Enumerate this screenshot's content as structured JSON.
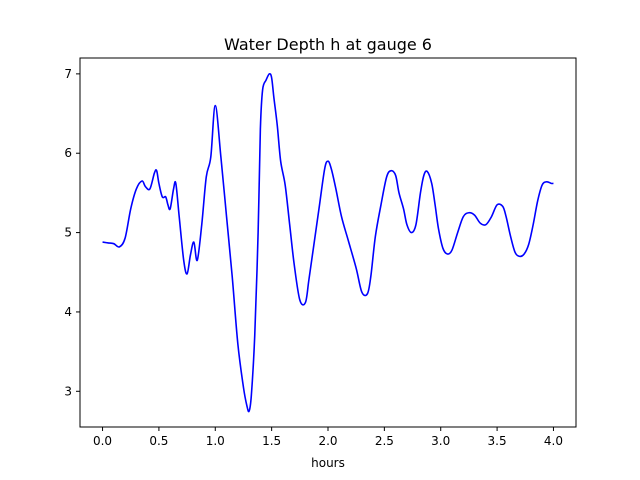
{
  "chart_data": {
    "type": "line",
    "title": "Water Depth h at gauge 6",
    "xlabel": "hours",
    "ylabel": "",
    "xlim": [
      -0.2,
      4.2
    ],
    "ylim": [
      2.55,
      7.2
    ],
    "xticks": [
      0.0,
      0.5,
      1.0,
      1.5,
      2.0,
      2.5,
      3.0,
      3.5,
      4.0
    ],
    "xtick_labels": [
      "0.0",
      "0.5",
      "1.0",
      "1.5",
      "2.0",
      "2.5",
      "3.0",
      "3.5",
      "4.0"
    ],
    "yticks": [
      3,
      4,
      5,
      6,
      7
    ],
    "ytick_labels": [
      "3",
      "4",
      "5",
      "6",
      "7"
    ],
    "grid": false,
    "series": [
      {
        "color": "#0000ff",
        "x": [
          0.0,
          0.05,
          0.1,
          0.15,
          0.2,
          0.25,
          0.3,
          0.35,
          0.38,
          0.42,
          0.46,
          0.48,
          0.5,
          0.53,
          0.56,
          0.58,
          0.6,
          0.63,
          0.65,
          0.68,
          0.72,
          0.75,
          0.78,
          0.81,
          0.84,
          0.88,
          0.92,
          0.96,
          1.0,
          1.05,
          1.1,
          1.15,
          1.2,
          1.25,
          1.28,
          1.3,
          1.32,
          1.35,
          1.38,
          1.4,
          1.42,
          1.45,
          1.48,
          1.5,
          1.52,
          1.55,
          1.58,
          1.62,
          1.66,
          1.7,
          1.75,
          1.8,
          1.83,
          1.87,
          1.92,
          1.97,
          2.0,
          2.03,
          2.07,
          2.12,
          2.18,
          2.25,
          2.3,
          2.35,
          2.38,
          2.42,
          2.47,
          2.52,
          2.56,
          2.6,
          2.63,
          2.67,
          2.7,
          2.74,
          2.78,
          2.82,
          2.85,
          2.88,
          2.92,
          2.95,
          2.98,
          3.02,
          3.06,
          3.1,
          3.15,
          3.2,
          3.25,
          3.3,
          3.35,
          3.4,
          3.45,
          3.5,
          3.55,
          3.58,
          3.62,
          3.66,
          3.7,
          3.74,
          3.78,
          3.82,
          3.86,
          3.9,
          3.94,
          3.98,
          4.0
        ],
        "values": [
          4.88,
          4.87,
          4.86,
          4.82,
          4.93,
          5.3,
          5.55,
          5.65,
          5.58,
          5.55,
          5.75,
          5.78,
          5.62,
          5.45,
          5.45,
          5.35,
          5.3,
          5.55,
          5.62,
          5.2,
          4.65,
          4.48,
          4.72,
          4.88,
          4.65,
          5.1,
          5.7,
          5.95,
          6.6,
          5.95,
          5.2,
          4.45,
          3.6,
          3.05,
          2.82,
          2.75,
          2.95,
          3.7,
          5.0,
          6.3,
          6.8,
          6.92,
          7.0,
          6.95,
          6.7,
          6.35,
          5.9,
          5.6,
          5.1,
          4.6,
          4.15,
          4.12,
          4.4,
          4.8,
          5.3,
          5.8,
          5.9,
          5.8,
          5.55,
          5.2,
          4.9,
          4.55,
          4.25,
          4.23,
          4.45,
          4.95,
          5.35,
          5.7,
          5.78,
          5.72,
          5.5,
          5.3,
          5.1,
          5.0,
          5.1,
          5.5,
          5.72,
          5.77,
          5.62,
          5.35,
          5.05,
          4.8,
          4.73,
          4.78,
          5.0,
          5.2,
          5.25,
          5.22,
          5.12,
          5.1,
          5.2,
          5.35,
          5.33,
          5.2,
          4.95,
          4.75,
          4.7,
          4.73,
          4.85,
          5.1,
          5.4,
          5.6,
          5.64,
          5.62,
          5.62
        ]
      }
    ]
  }
}
